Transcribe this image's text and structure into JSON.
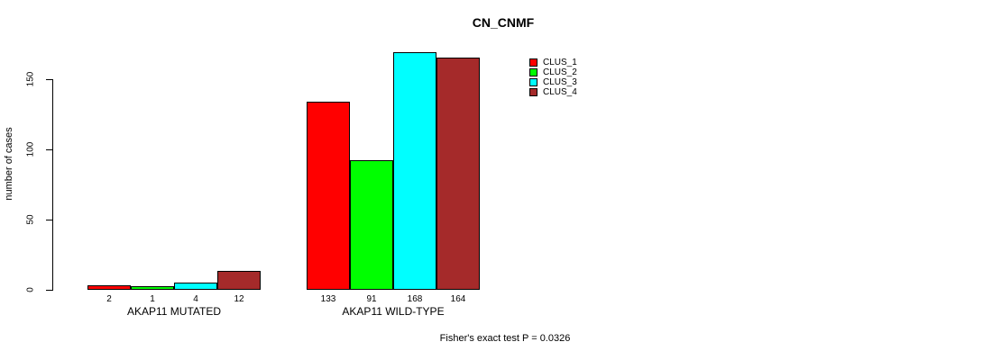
{
  "title": "CN_CNMF",
  "y_axis": {
    "label": "number of cases",
    "ticks": [
      0,
      50,
      100,
      150
    ]
  },
  "groups": [
    "AKAP11 MUTATED",
    "AKAP11 WILD-TYPE"
  ],
  "legend": [
    {
      "label": "CLUS_1",
      "color": "#ff0000"
    },
    {
      "label": "CLUS_2",
      "color": "#00ff00"
    },
    {
      "label": "CLUS_3",
      "color": "#00ffff"
    },
    {
      "label": "CLUS_4",
      "color": "#a52a2a"
    }
  ],
  "footer": "Fisher's exact test P = 0.0326",
  "chart_data": {
    "type": "bar",
    "title": "CN_CNMF",
    "xlabel": "",
    "ylabel": "number of cases",
    "categories": [
      "AKAP11 MUTATED",
      "AKAP11 WILD-TYPE"
    ],
    "series": [
      {
        "name": "CLUS_1",
        "color": "#ff0000",
        "values": [
          2,
          133
        ]
      },
      {
        "name": "CLUS_2",
        "color": "#00ff00",
        "values": [
          1,
          91
        ]
      },
      {
        "name": "CLUS_3",
        "color": "#00ffff",
        "values": [
          4,
          168
        ]
      },
      {
        "name": "CLUS_4",
        "color": "#a52a2a",
        "values": [
          12,
          164
        ]
      }
    ],
    "bar_value_labels": [
      [
        2,
        1,
        4,
        12
      ],
      [
        133,
        91,
        168,
        164
      ]
    ],
    "yticks": [
      0,
      50,
      100,
      150
    ],
    "ylim": [
      0,
      175
    ],
    "grid": false,
    "legend_position": "top-right",
    "annotation": "Fisher's exact test P = 0.0326"
  }
}
